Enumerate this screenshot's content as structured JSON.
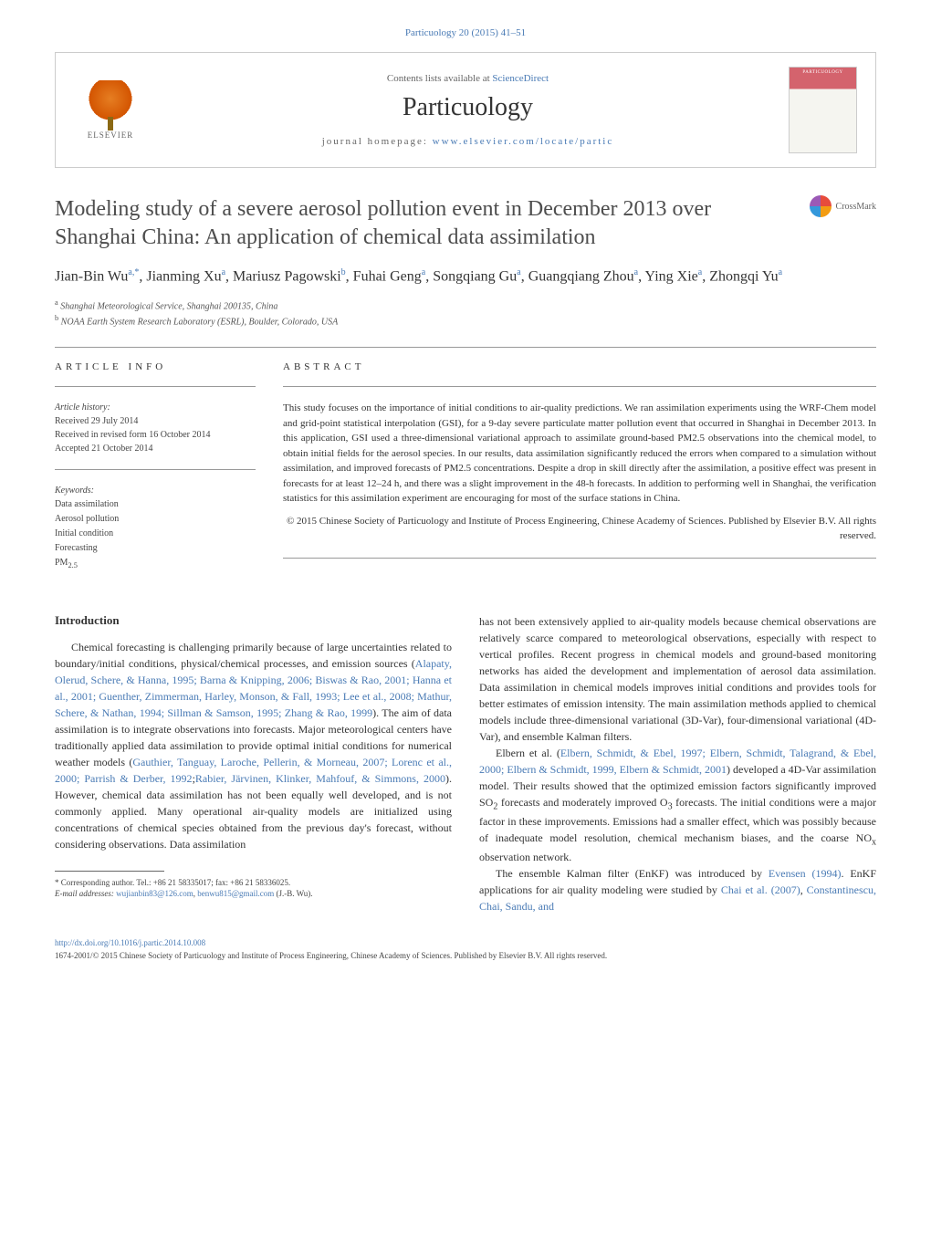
{
  "journal_ref": "Particuology 20 (2015) 41–51",
  "header": {
    "contents_prefix": "Contents lists available at ",
    "contents_link": "ScienceDirect",
    "journal_name": "Particuology",
    "homepage_prefix": "journal homepage: ",
    "homepage_link": "www.elsevier.com/locate/partic",
    "publisher": "ELSEVIER"
  },
  "title": "Modeling study of a severe aerosol pollution event in December 2013 over Shanghai China: An application of chemical data assimilation",
  "crossmark_label": "CrossMark",
  "authors_html": "Jian-Bin Wu<sup>a,*</sup>, Jianming Xu<sup>a</sup>, Mariusz Pagowski<sup>b</sup>, Fuhai Geng<sup>a</sup>, Songqiang Gu<sup>a</sup>, Guangqiang Zhou<sup>a</sup>, Ying Xie<sup>a</sup>, Zhongqi Yu<sup>a</sup>",
  "affiliations": [
    "a Shanghai Meteorological Service, Shanghai 200135, China",
    "b NOAA Earth System Research Laboratory (ESRL), Boulder, Colorado, USA"
  ],
  "article_info": {
    "heading": "ARTICLE INFO",
    "history_label": "Article history:",
    "received": "Received 29 July 2014",
    "revised": "Received in revised form 16 October 2014",
    "accepted": "Accepted 21 October 2014",
    "keywords_label": "Keywords:",
    "keywords": [
      "Data assimilation",
      "Aerosol pollution",
      "Initial condition",
      "Forecasting",
      "PM2.5"
    ]
  },
  "abstract": {
    "heading": "ABSTRACT",
    "text": "This study focuses on the importance of initial conditions to air-quality predictions. We ran assimilation experiments using the WRF-Chem model and grid-point statistical interpolation (GSI), for a 9-day severe particulate matter pollution event that occurred in Shanghai in December 2013. In this application, GSI used a three-dimensional variational approach to assimilate ground-based PM2.5 observations into the chemical model, to obtain initial fields for the aerosol species. In our results, data assimilation significantly reduced the errors when compared to a simulation without assimilation, and improved forecasts of PM2.5 concentrations. Despite a drop in skill directly after the assimilation, a positive effect was present in forecasts for at least 12–24 h, and there was a slight improvement in the 48-h forecasts. In addition to performing well in Shanghai, the verification statistics for this assimilation experiment are encouraging for most of the surface stations in China.",
    "copyright": "© 2015 Chinese Society of Particuology and Institute of Process Engineering, Chinese Academy of Sciences. Published by Elsevier B.V. All rights reserved."
  },
  "body": {
    "intro_heading": "Introduction",
    "col1_p1_pre": "Chemical forecasting is challenging primarily because of large uncertainties related to boundary/initial conditions, physical/chemical processes, and emission sources (",
    "col1_p1_refs": "Alapaty, Olerud, Schere, & Hanna, 1995; Barna & Knipping, 2006; Biswas & Rao, 2001; Hanna et al., 2001; Guenther, Zimmerman, Harley, Monson, & Fall, 1993; Lee et al., 2008; Mathur, Schere, & Nathan, 1994; Sillman & Samson, 1995; Zhang & Rao, 1999",
    "col1_p1_mid": "). The aim of data assimilation is to integrate observations into forecasts. Major meteorological centers have traditionally applied data assimilation to provide optimal initial conditions for numerical weather models (",
    "col1_p1_refs2": "Gauthier, Tanguay, Laroche, Pellerin, & Morneau, 2007; Lorenc et al., 2000; Parrish & Derber, 1992",
    "col1_p1_mid2": ";",
    "col1_p1_refs3": "Rabier, Järvinen, Klinker, Mahfouf, & Simmons, 2000",
    "col1_p1_post": "). However, chemical data assimilation has not been equally well developed, and is not commonly applied. Many operational air-quality models are initialized using concentrations of chemical species obtained from the previous day's forecast, without considering observations. Data assimilation",
    "col2_p1": "has not been extensively applied to air-quality models because chemical observations are relatively scarce compared to meteorological observations, especially with respect to vertical profiles. Recent progress in chemical models and ground-based monitoring networks has aided the development and implementation of aerosol data assimilation. Data assimilation in chemical models improves initial conditions and provides tools for better estimates of emission intensity. The main assimilation methods applied to chemical models include three-dimensional variational (3D-Var), four-dimensional variational (4D-Var), and ensemble Kalman filters.",
    "col2_p2_pre": "Elbern et al. (",
    "col2_p2_refs": "Elbern, Schmidt, & Ebel, 1997; Elbern, Schmidt, Talagrand, & Ebel, 2000; Elbern & Schmidt, 1999, Elbern & Schmidt, 2001",
    "col2_p2_post": ") developed a 4D-Var assimilation model. Their results showed that the optimized emission factors significantly improved SO2 forecasts and moderately improved O3 forecasts. The initial conditions were a major factor in these improvements. Emissions had a smaller effect, which was possibly because of inadequate model resolution, chemical mechanism biases, and the coarse NOx observation network.",
    "col2_p3_pre": "The ensemble Kalman filter (EnKF) was introduced by ",
    "col2_p3_ref1": "Evensen (1994)",
    "col2_p3_mid": ". EnKF applications for air quality modeling were studied by ",
    "col2_p3_ref2": "Chai et al. (2007)",
    "col2_p3_mid2": ", ",
    "col2_p3_ref3": "Constantinescu, Chai, Sandu, and"
  },
  "footnote": {
    "corr": "* Corresponding author. Tel.: +86 21 58335017; fax: +86 21 58336025.",
    "email_label": "E-mail addresses: ",
    "email1": "wujianbin83@126.com",
    "email2": "benwu815@gmail.com",
    "email_suffix": " (J.-B. Wu)."
  },
  "footer": {
    "doi": "http://dx.doi.org/10.1016/j.partic.2014.10.008",
    "issn": "1674-2001/© 2015 Chinese Society of Particuology and Institute of Process Engineering, Chinese Academy of Sciences. Published by Elsevier B.V. All rights reserved."
  },
  "colors": {
    "link": "#4a7bb5",
    "text": "#333333",
    "rule": "#999999"
  }
}
